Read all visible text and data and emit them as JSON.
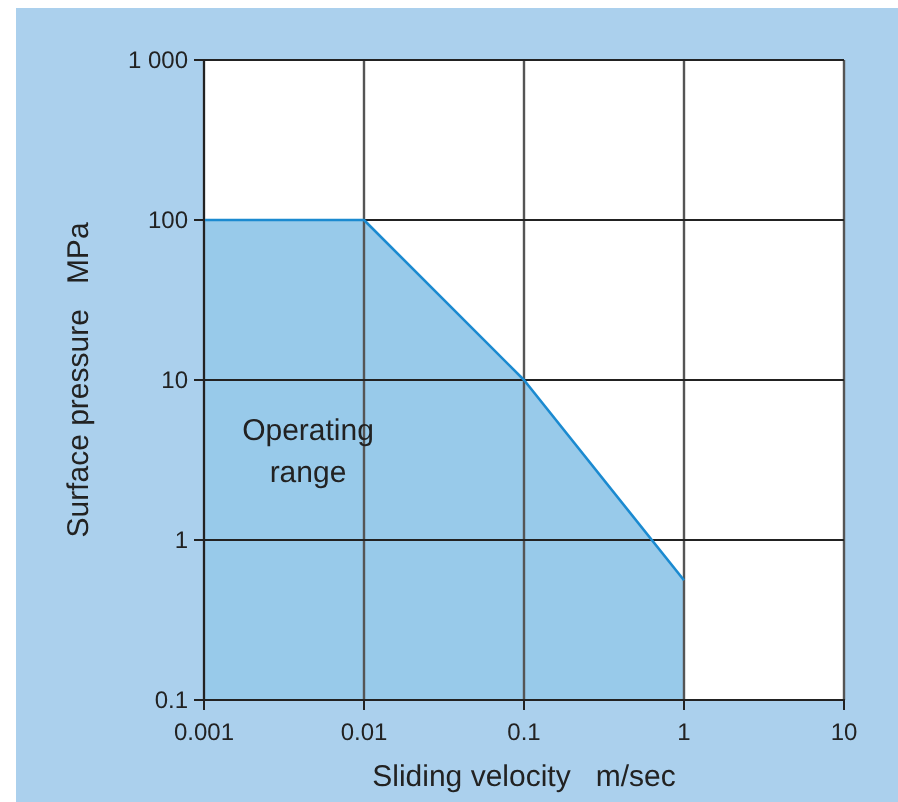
{
  "chart_data": {
    "type": "area",
    "xlabel": "Sliding velocity   m/sec",
    "ylabel": "Surface pressure   MPa",
    "x": [
      0.001,
      0.01,
      0.1,
      1
    ],
    "series": [
      {
        "color": "#1b8ad0",
        "values": [
          100,
          100,
          10,
          0.56
        ]
      }
    ],
    "xlim": [
      0.001,
      10
    ],
    "xticks": [
      0.001,
      0.01,
      0.1,
      1,
      10
    ],
    "ylim": [
      0.1,
      1000
    ],
    "yticks": [
      0.1,
      1,
      10,
      100,
      {
        "value": 1000,
        "label": "1 000"
      }
    ],
    "log": "xy",
    "grid": true,
    "annotations": [
      "Operating range"
    ]
  }
}
